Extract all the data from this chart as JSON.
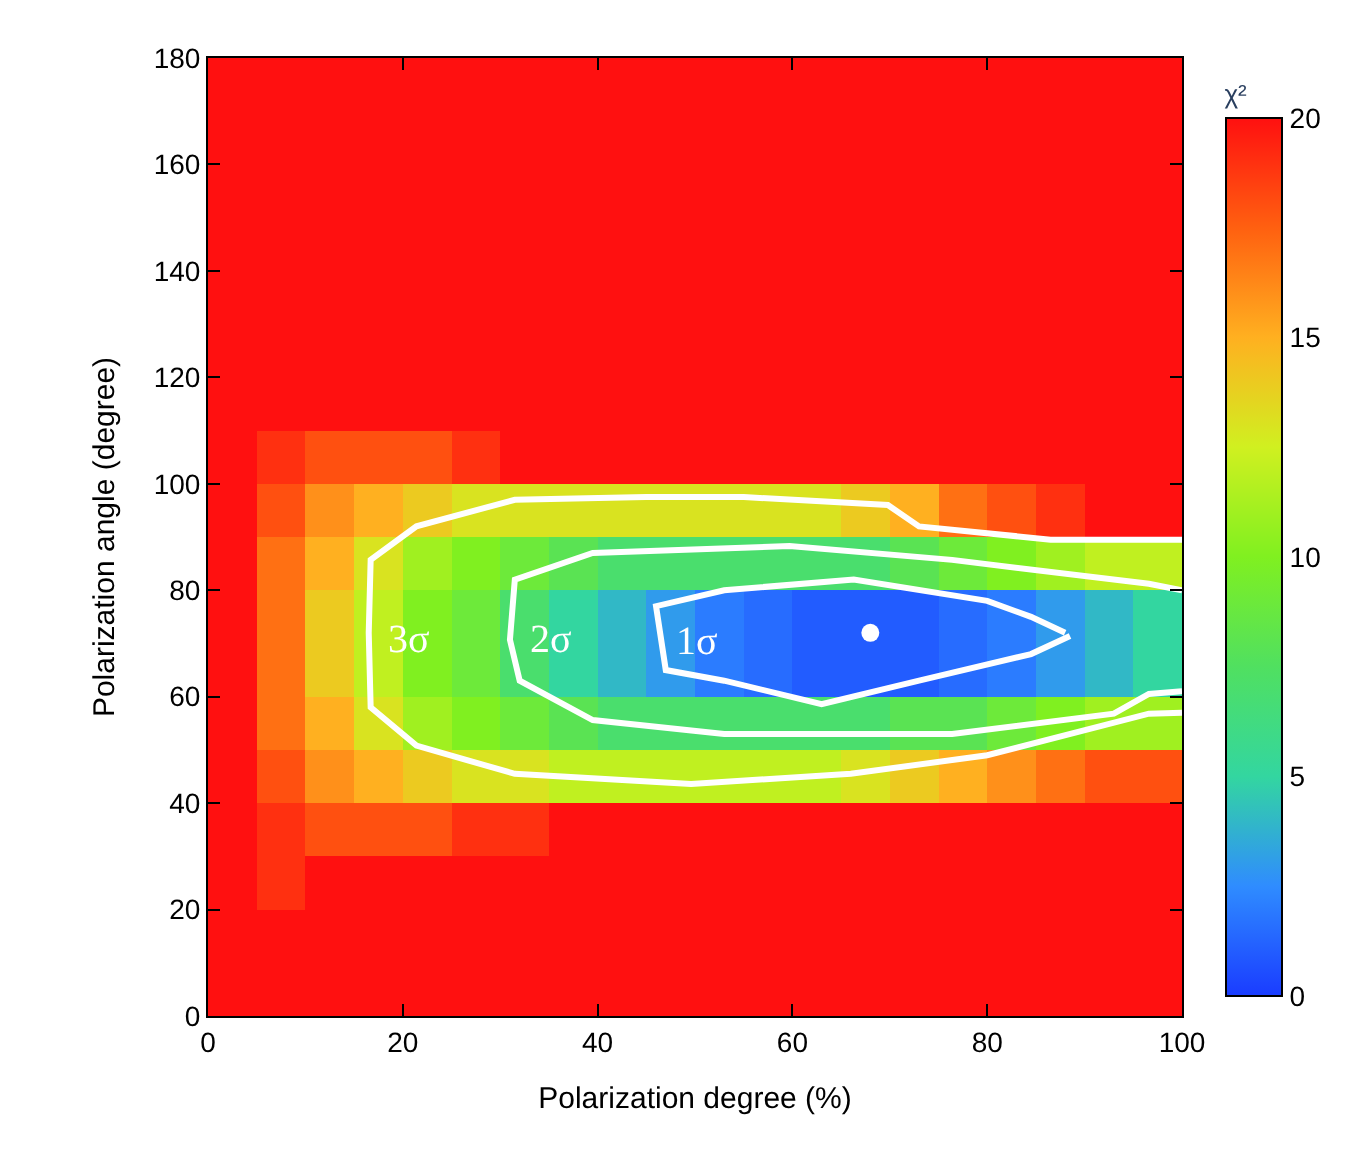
{
  "chart_data": {
    "type": "heatmap",
    "xlabel": "Polarization degree (%)",
    "ylabel": "Polarization angle (degree)",
    "clabel": "χ²",
    "x": [
      2.5,
      7.5,
      12.5,
      17.5,
      22.5,
      27.5,
      32.5,
      37.5,
      42.5,
      47.5,
      52.5,
      57.5,
      62.5,
      67.5,
      72.5,
      77.5,
      82.5,
      87.5,
      92.5,
      97.5
    ],
    "y": [
      175,
      165,
      155,
      145,
      135,
      125,
      115,
      105,
      95,
      85,
      75,
      65,
      55,
      45,
      35,
      25,
      15,
      5
    ],
    "cells": [
      [
        20,
        20,
        20,
        20,
        20,
        20,
        20,
        20,
        20,
        20,
        20,
        20,
        20,
        20,
        20,
        20,
        20,
        20,
        20,
        20
      ],
      [
        20,
        20,
        20,
        20,
        20,
        20,
        20,
        20,
        20,
        20,
        20,
        20,
        20,
        20,
        20,
        20,
        20,
        20,
        20,
        20
      ],
      [
        20,
        20,
        20,
        20,
        20,
        20,
        20,
        20,
        20,
        20,
        20,
        20,
        20,
        20,
        20,
        20,
        20,
        20,
        20,
        20
      ],
      [
        20,
        20,
        20,
        20,
        20,
        20,
        20,
        20,
        20,
        20,
        20,
        20,
        20,
        20,
        20,
        20,
        20,
        20,
        20,
        20
      ],
      [
        20,
        20,
        20,
        20,
        20,
        20,
        20,
        20,
        20,
        20,
        20,
        20,
        20,
        20,
        20,
        20,
        20,
        20,
        20,
        20
      ],
      [
        20,
        20,
        20,
        20,
        20,
        20,
        20,
        20,
        20,
        20,
        20,
        20,
        20,
        20,
        20,
        20,
        20,
        20,
        20,
        20
      ],
      [
        20,
        20,
        20,
        20,
        20,
        20,
        20,
        20,
        20,
        20,
        20,
        20,
        20,
        20,
        20,
        20,
        20,
        20,
        20,
        20
      ],
      [
        20,
        19,
        18,
        18,
        18,
        19,
        20,
        20,
        20,
        20,
        20,
        20,
        20,
        20,
        20,
        20,
        20,
        20,
        20,
        20
      ],
      [
        20,
        18,
        16,
        15,
        14,
        13,
        13,
        13,
        13,
        13,
        13,
        13,
        13,
        14,
        15,
        17,
        18,
        19,
        20,
        20
      ],
      [
        20,
        17,
        15,
        13,
        11,
        10,
        9,
        8,
        7,
        7,
        7,
        7,
        7,
        7,
        8,
        9,
        10,
        11,
        12,
        12
      ],
      [
        20,
        17,
        14,
        12,
        10,
        9,
        7,
        5,
        4,
        3,
        2,
        1.5,
        1,
        1,
        1,
        1.5,
        2,
        3,
        4,
        5
      ],
      [
        20,
        17,
        14,
        12,
        10,
        9,
        7,
        5,
        4,
        3,
        2,
        1.5,
        1,
        1,
        1,
        1.5,
        2,
        3,
        4,
        5
      ],
      [
        20,
        17,
        15,
        13,
        11,
        10,
        9,
        8,
        7,
        7,
        7,
        7,
        7,
        7,
        8,
        8,
        9,
        10,
        11,
        11
      ],
      [
        20,
        18,
        16,
        15,
        14,
        13,
        13,
        12,
        12,
        12,
        12,
        12,
        12,
        13,
        14,
        15,
        16,
        17,
        18,
        18
      ],
      [
        20,
        19,
        18,
        18,
        18,
        19,
        19,
        20,
        20,
        20,
        20,
        20,
        20,
        20,
        20,
        20,
        20,
        20,
        20,
        20
      ],
      [
        20,
        19,
        20,
        20,
        20,
        20,
        20,
        20,
        20,
        20,
        20,
        20,
        20,
        20,
        20,
        20,
        20,
        20,
        20,
        20
      ],
      [
        20,
        20,
        20,
        20,
        20,
        20,
        20,
        20,
        20,
        20,
        20,
        20,
        20,
        20,
        20,
        20,
        20,
        20,
        20,
        20
      ],
      [
        20,
        20,
        20,
        20,
        20,
        20,
        20,
        20,
        20,
        20,
        20,
        20,
        20,
        20,
        20,
        20,
        20,
        20,
        20,
        20
      ]
    ],
    "colors": [
      "#1a3cff",
      "#2f8cff",
      "#33d6a0",
      "#50e060",
      "#80f020",
      "#d0f020",
      "#ffb020",
      "#ff6010",
      "#ff1010"
    ],
    "clim": [
      0,
      20
    ],
    "cticks": [
      0,
      5,
      10,
      15,
      20
    ],
    "xlim": [
      0,
      100
    ],
    "xticks": [
      0,
      20,
      40,
      60,
      80,
      100
    ],
    "ylim": [
      0,
      180
    ],
    "yticks": [
      0,
      20,
      40,
      60,
      80,
      100,
      120,
      140,
      160,
      180
    ],
    "series": [
      {
        "type": "line",
        "color": "#ffffff",
        "x": [
          100,
          86.5,
          73,
          69.8,
          55,
          45,
          31.5,
          21.4,
          16.7,
          16.5,
          16.7,
          21.4,
          31.5,
          49.6,
          66,
          80,
          96.6,
          100
        ],
        "values": [
          89.5,
          89.5,
          92,
          96,
          97.5,
          97.5,
          97,
          92,
          85.7,
          72,
          58,
          50.8,
          45.5,
          43.6,
          45.5,
          49,
          56.8,
          57
        ]
      },
      {
        "type": "line",
        "color": "#ffffff",
        "x": [
          100,
          96.6,
          76.4,
          59.7,
          39.5,
          31.5,
          31,
          32,
          39.5,
          53,
          76.4,
          93,
          96.6,
          100
        ],
        "values": [
          80,
          81.2,
          85.7,
          88.3,
          87,
          82,
          70.7,
          63,
          55.6,
          53,
          53,
          56.8,
          60.5,
          61
        ]
      },
      {
        "type": "line",
        "color": "#ffffff",
        "x": [
          88.5,
          84.5,
          73,
          63,
          53,
          47,
          46,
          53,
          66.3,
          80,
          84.5,
          88
        ],
        "values": [
          71.4,
          68,
          63,
          58.6,
          63,
          65,
          77,
          80,
          82,
          78,
          75,
          72
        ]
      },
      {
        "type": "scatter",
        "color": "#ffffff",
        "x": [
          68
        ],
        "values": [
          72
        ]
      }
    ],
    "annotations": [
      "3σ",
      "2σ",
      "1σ"
    ]
  }
}
